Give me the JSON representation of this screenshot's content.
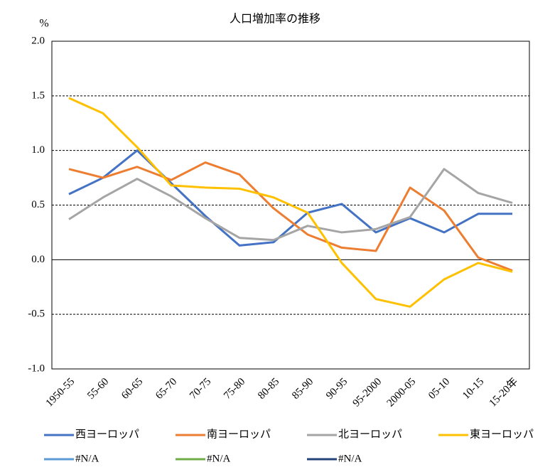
{
  "chart_data": {
    "type": "line",
    "title": "人口増加率の推移",
    "y_unit": "%",
    "categories": [
      "1950-55",
      "55-60",
      "60-65",
      "65-70",
      "70-75",
      "75-80",
      "80-85",
      "85-90",
      "90-95",
      "95-2000",
      "2000-05",
      "05-10",
      "10-15",
      "15-20年"
    ],
    "ylim": [
      -1.0,
      2.0
    ],
    "yticks": [
      {
        "value": 2.0,
        "label": "2.0"
      },
      {
        "value": 1.5,
        "label": "1.5"
      },
      {
        "value": 1.0,
        "label": "1.0"
      },
      {
        "value": 0.5,
        "label": "0.5"
      },
      {
        "value": 0.0,
        "label": "0.0"
      },
      {
        "value": -0.5,
        "label": "-0.5"
      },
      {
        "value": -1.0,
        "label": "-1.0"
      }
    ],
    "grid": true,
    "legend": "bottom",
    "series": [
      {
        "name": "西ヨーロッパ",
        "color": "#4472c4",
        "values": [
          0.6,
          0.75,
          1.0,
          0.7,
          0.4,
          0.13,
          0.16,
          0.43,
          0.51,
          0.25,
          0.38,
          0.25,
          0.42,
          0.42
        ]
      },
      {
        "name": "南ヨーロッパ",
        "color": "#ed7d31",
        "values": [
          0.83,
          0.75,
          0.85,
          0.73,
          0.89,
          0.78,
          0.47,
          0.23,
          0.11,
          0.08,
          0.66,
          0.45,
          0.02,
          -0.1
        ]
      },
      {
        "name": "北ヨーロッパ",
        "color": "#a5a5a5",
        "values": [
          0.37,
          0.57,
          0.74,
          0.58,
          0.38,
          0.2,
          0.18,
          0.31,
          0.25,
          0.28,
          0.39,
          0.83,
          0.61,
          0.52
        ]
      },
      {
        "name": "東ヨーロッパ",
        "color": "#ffc000",
        "values": [
          1.48,
          1.34,
          1.03,
          0.68,
          0.66,
          0.65,
          0.57,
          0.43,
          -0.03,
          -0.36,
          -0.43,
          -0.18,
          -0.03,
          -0.11
        ]
      },
      {
        "name": "#N/A",
        "color": "#5b9bd5",
        "values": [
          null,
          null,
          null,
          null,
          null,
          null,
          null,
          null,
          null,
          null,
          null,
          null,
          null,
          null
        ]
      },
      {
        "name": "#N/A",
        "color": "#70ad47",
        "values": [
          null,
          null,
          null,
          null,
          null,
          null,
          null,
          null,
          null,
          null,
          null,
          null,
          null,
          null
        ]
      },
      {
        "name": "#N/A",
        "color": "#264478",
        "values": [
          null,
          null,
          null,
          null,
          null,
          null,
          null,
          null,
          null,
          null,
          null,
          null,
          null,
          null
        ]
      }
    ]
  }
}
